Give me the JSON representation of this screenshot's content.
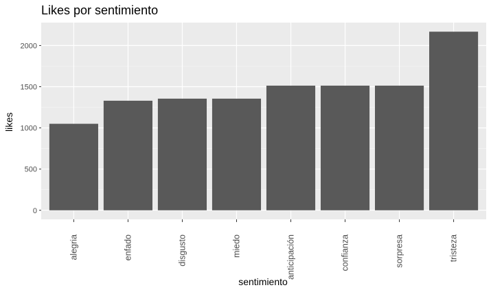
{
  "chart_data": {
    "type": "bar",
    "title": "Likes por sentimiento",
    "xlabel": "sentimiento",
    "ylabel": "likes",
    "categories": [
      "alegria",
      "enfado",
      "disgusto",
      "miedo",
      "anticipación",
      "confianza",
      "sorpresa",
      "tristeza"
    ],
    "values": [
      1050,
      1330,
      1355,
      1355,
      1513,
      1513,
      1513,
      2168
    ],
    "yticks": [
      0,
      500,
      1000,
      1500,
      2000
    ],
    "ylim": [
      -110,
      2278
    ],
    "grid": true,
    "legend": "none",
    "colors": {
      "bar": "#595959",
      "panel": "#ebebeb",
      "grid_major": "#ffffff",
      "grid_minor": "#f5f5f5",
      "tick_text": "#4d4d4d"
    }
  }
}
